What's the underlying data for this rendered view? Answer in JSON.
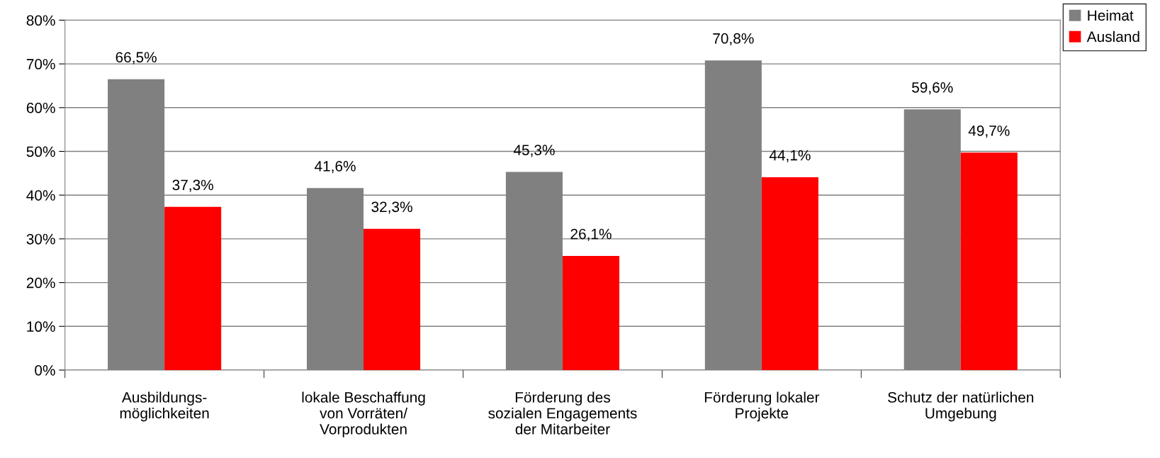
{
  "chart_data": {
    "type": "bar",
    "categories": [
      "Ausbildungs-\nmöglichkeiten",
      "lokale Beschaffung\nvon Vorräten/\nVorprodukten",
      "Förderung des\nsozialen Engagements\nder Mitarbeiter",
      "Förderung lokaler\nProjekte",
      "Schutz der natürlichen\nUmgebung"
    ],
    "series": [
      {
        "name": "Heimat",
        "color": "#808080",
        "values": [
          66.5,
          41.6,
          45.3,
          70.8,
          59.6
        ],
        "value_labels": [
          "66,5%",
          "41,6%",
          "45,3%",
          "70,8%",
          "59,6%"
        ]
      },
      {
        "name": "Ausland",
        "color": "#ff0000",
        "values": [
          37.3,
          32.3,
          26.1,
          44.1,
          49.7
        ],
        "value_labels": [
          "37,3%",
          "32,3%",
          "26,1%",
          "44,1%",
          "49,7%"
        ]
      }
    ],
    "ylim": [
      0,
      80
    ],
    "yticks": [
      {
        "value": 0,
        "label": "0%"
      },
      {
        "value": 10,
        "label": "10%"
      },
      {
        "value": 20,
        "label": "20%"
      },
      {
        "value": 30,
        "label": "30%"
      },
      {
        "value": 40,
        "label": "40%"
      },
      {
        "value": 50,
        "label": "50%"
      },
      {
        "value": 60,
        "label": "60%"
      },
      {
        "value": 70,
        "label": "70%"
      },
      {
        "value": 80,
        "label": "80%"
      }
    ],
    "grid": "y",
    "legend": "top right"
  }
}
